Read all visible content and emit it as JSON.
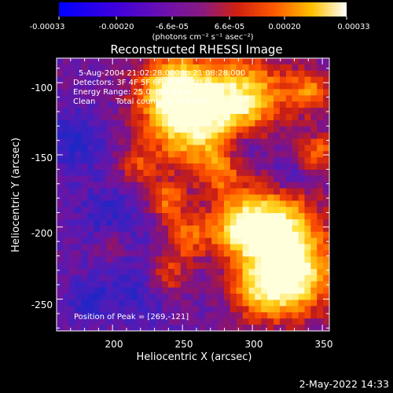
{
  "plot": {
    "title": "Reconstructed RHESSI Image",
    "xlabel": "Heliocentric X (arcsec)",
    "ylabel": "Heliocentric Y (arcsec)",
    "x_ticks": [
      "200",
      "250",
      "300",
      "350"
    ],
    "y_ticks": [
      "-100",
      "-150",
      "-200",
      "-250"
    ],
    "x_tick_values": [
      200,
      250,
      300,
      350
    ],
    "y_tick_values": [
      -100,
      -150,
      -200,
      -250
    ],
    "xlim": [
      160,
      355
    ],
    "ylim": [
      -272,
      -83
    ]
  },
  "colorbar": {
    "ticks": [
      "-0.00033",
      "-0.00020",
      "-6.6e-05",
      "6.6e-05",
      "0.00020",
      "0.00033"
    ],
    "unit_label": "(photons cm⁻² s⁻¹ asec⁻²)",
    "range": [
      -0.00033,
      0.00033
    ]
  },
  "info": {
    "time_range": "5-Aug-2004 21:02:28.000 to 21:08:28.000",
    "detectors": "Detectors: 3F 4F 5F 6F 7F 8F, Att 0",
    "energy": "Energy Range: 25.0 - 50.0 keV",
    "clean": "Clean",
    "counts": "Total counts: 5.37E+03",
    "peak": "Position of Peak = [269,-121]"
  },
  "footer": {
    "timestamp": "2-May-2022 14:33"
  },
  "colors": {
    "background": "#000000",
    "text": "#ffffff",
    "colormap": [
      "#0000ff",
      "#5a00c8",
      "#7e1f9a",
      "#c02828",
      "#ff2400",
      "#ff8a00",
      "#ffd400",
      "#ffffe8"
    ]
  }
}
